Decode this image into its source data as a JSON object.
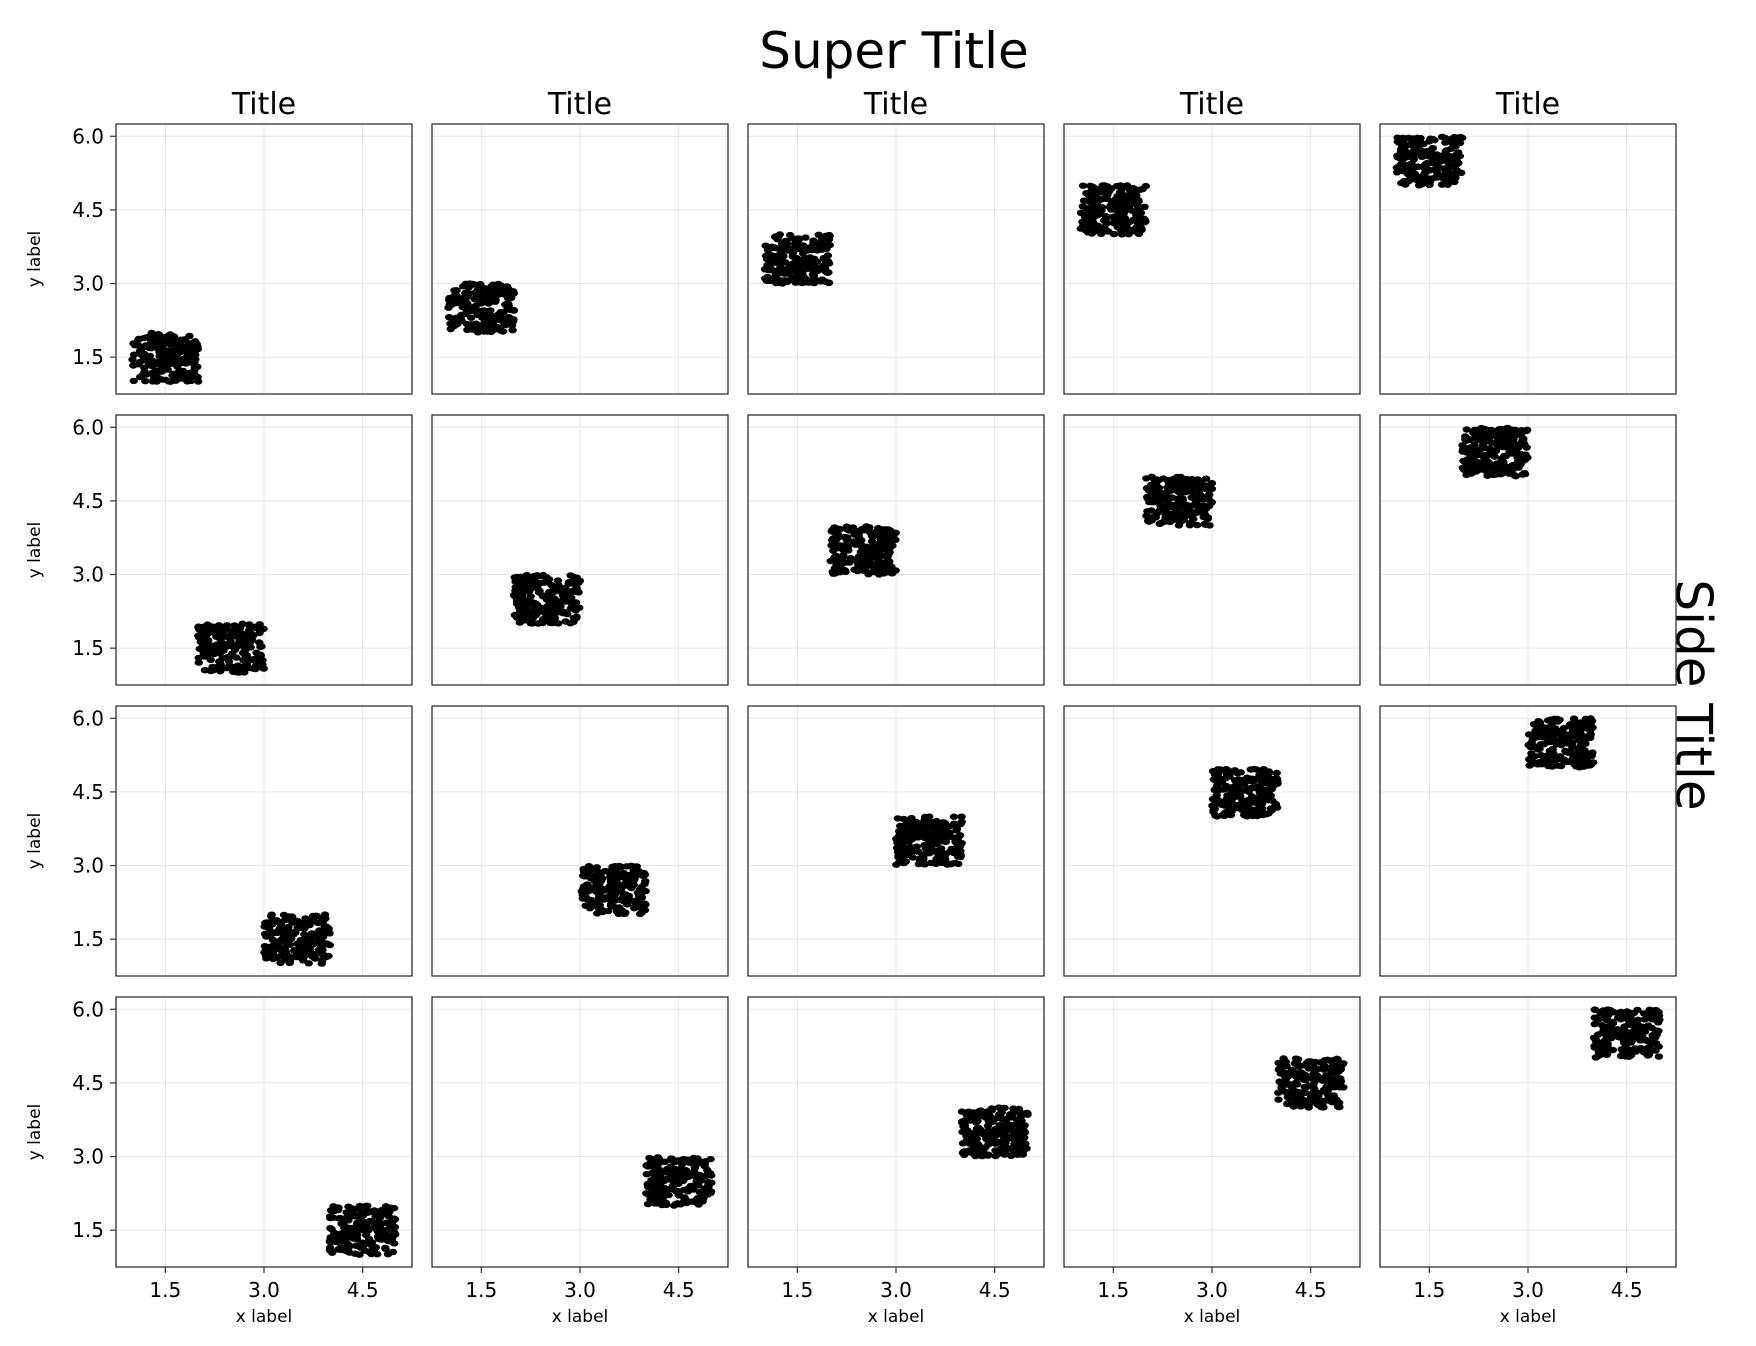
{
  "figure": {
    "suptitle": "Super Title",
    "side_title": "Side Title",
    "panel_title": "Title",
    "xlabel": "x label",
    "ylabel": "y label"
  },
  "chart_data": {
    "type": "scatter",
    "layout": "4 rows x 5 columns of panels; Title above each top-row panel; y label on left column; x label on bottom row; Side Title on right",
    "xlim": [
      0.75,
      5.25
    ],
    "ylim": [
      0.75,
      6.25
    ],
    "xticks": [
      1.5,
      3.0,
      4.5
    ],
    "yticks": [
      1.5,
      3.0,
      4.5,
      6.0
    ],
    "grid": true,
    "marker_color": "#000000",
    "points_per_panel": 200,
    "panels": [
      {
        "row": 0,
        "col": 0,
        "x_range": [
          1,
          2
        ],
        "y_range": [
          1,
          2
        ]
      },
      {
        "row": 0,
        "col": 1,
        "x_range": [
          1,
          2
        ],
        "y_range": [
          2,
          3
        ]
      },
      {
        "row": 0,
        "col": 2,
        "x_range": [
          1,
          2
        ],
        "y_range": [
          3,
          4
        ]
      },
      {
        "row": 0,
        "col": 3,
        "x_range": [
          1,
          2
        ],
        "y_range": [
          4,
          5
        ]
      },
      {
        "row": 0,
        "col": 4,
        "x_range": [
          1,
          2
        ],
        "y_range": [
          5,
          6
        ]
      },
      {
        "row": 1,
        "col": 0,
        "x_range": [
          2,
          3
        ],
        "y_range": [
          1,
          2
        ]
      },
      {
        "row": 1,
        "col": 1,
        "x_range": [
          2,
          3
        ],
        "y_range": [
          2,
          3
        ]
      },
      {
        "row": 1,
        "col": 2,
        "x_range": [
          2,
          3
        ],
        "y_range": [
          3,
          4
        ]
      },
      {
        "row": 1,
        "col": 3,
        "x_range": [
          2,
          3
        ],
        "y_range": [
          4,
          5
        ]
      },
      {
        "row": 1,
        "col": 4,
        "x_range": [
          2,
          3
        ],
        "y_range": [
          5,
          6
        ]
      },
      {
        "row": 2,
        "col": 0,
        "x_range": [
          3,
          4
        ],
        "y_range": [
          1,
          2
        ]
      },
      {
        "row": 2,
        "col": 1,
        "x_range": [
          3,
          4
        ],
        "y_range": [
          2,
          3
        ]
      },
      {
        "row": 2,
        "col": 2,
        "x_range": [
          3,
          4
        ],
        "y_range": [
          3,
          4
        ]
      },
      {
        "row": 2,
        "col": 3,
        "x_range": [
          3,
          4
        ],
        "y_range": [
          4,
          5
        ]
      },
      {
        "row": 2,
        "col": 4,
        "x_range": [
          3,
          4
        ],
        "y_range": [
          5,
          6
        ]
      },
      {
        "row": 3,
        "col": 0,
        "x_range": [
          4,
          5
        ],
        "y_range": [
          1,
          2
        ]
      },
      {
        "row": 3,
        "col": 1,
        "x_range": [
          4,
          5
        ],
        "y_range": [
          2,
          3
        ]
      },
      {
        "row": 3,
        "col": 2,
        "x_range": [
          4,
          5
        ],
        "y_range": [
          3,
          4
        ]
      },
      {
        "row": 3,
        "col": 3,
        "x_range": [
          4,
          5
        ],
        "y_range": [
          4,
          5
        ]
      },
      {
        "row": 3,
        "col": 4,
        "x_range": [
          4,
          5
        ],
        "y_range": [
          5,
          6
        ]
      }
    ]
  }
}
